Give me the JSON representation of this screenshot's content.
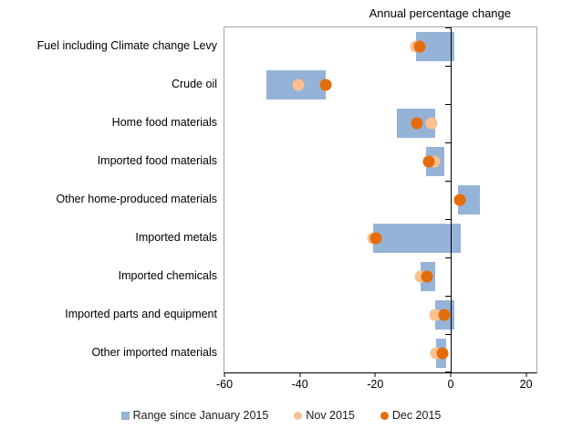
{
  "title": "Annual percentage change",
  "legend": {
    "range_label": "Range since January 2015",
    "nov_label": "Nov 2015",
    "dec_label": "Dec 2015"
  },
  "colors": {
    "range_bar": "#95B3D7",
    "nov_dot": "#FAC090",
    "dec_dot": "#E46C0A",
    "plot_border": "#A6A6A6",
    "axis": "#000000"
  },
  "chart_data": {
    "type": "bar",
    "subtype": "horizontal-range-with-dots",
    "title": "Annual percentage change",
    "xlabel": "",
    "ylabel": "",
    "xlim": [
      -60,
      22.75
    ],
    "x_ticks": [
      -60,
      -40,
      -20,
      0,
      20
    ],
    "grid": false,
    "legend_position": "bottom",
    "categories": [
      "Fuel including Climate change Levy",
      "Crude oil",
      "Home food materials",
      "Imported food materials",
      "Other home-produced materials",
      "Imported metals",
      "Imported chemicals",
      "Imported parts and equipment",
      "Other imported materials"
    ],
    "series": [
      {
        "id": "range",
        "name": "Range since January 2015",
        "type": "range",
        "color": "#95B3D7",
        "ranges": [
          [
            -9.3,
            1.0
          ],
          [
            -48.9,
            -33.2
          ],
          [
            -14.2,
            -4.2
          ],
          [
            -6.5,
            -1.8
          ],
          [
            2.0,
            7.7
          ],
          [
            -20.5,
            2.7
          ],
          [
            -7.9,
            -4.0
          ],
          [
            -4.0,
            1.0
          ],
          [
            -3.8,
            -1.3
          ]
        ]
      },
      {
        "id": "nov",
        "name": "Nov 2015",
        "type": "dot",
        "color": "#FAC090",
        "values": [
          -9.3,
          -40.5,
          -5.0,
          -4.4,
          2.4,
          -20.5,
          -7.9,
          -4.0,
          -3.8
        ]
      },
      {
        "id": "dec",
        "name": "Dec 2015",
        "type": "dot",
        "color": "#E46C0A",
        "values": [
          -8.1,
          -33.2,
          -9.0,
          -5.8,
          2.4,
          -19.9,
          -6.3,
          -1.8,
          -2.1
        ]
      }
    ]
  }
}
